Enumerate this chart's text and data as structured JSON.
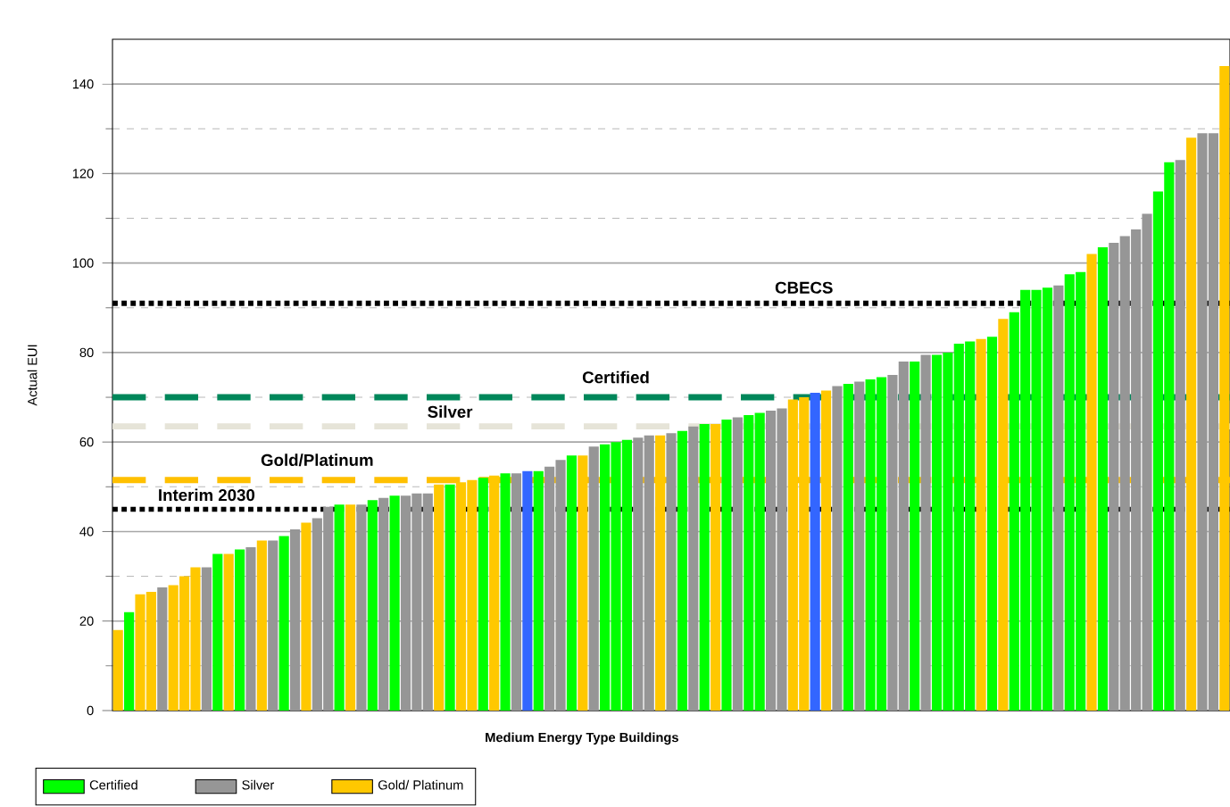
{
  "chart_data": {
    "type": "bar",
    "xlabel": "Medium Energy Type Buildings",
    "ylabel": "Actual EUI",
    "categories": [
      null,
      null,
      null,
      null,
      null,
      null,
      null,
      null,
      null,
      null,
      null,
      null,
      null,
      null,
      null,
      null,
      null,
      null,
      null,
      null,
      null,
      null,
      null,
      null,
      null,
      null,
      null,
      null,
      null,
      null,
      null,
      null,
      null,
      null,
      null,
      null,
      null,
      null,
      null,
      null,
      null,
      null,
      null,
      null,
      null,
      null,
      null,
      null,
      null,
      null,
      null,
      null,
      null,
      null,
      null,
      null,
      null,
      null,
      null,
      null,
      null,
      null,
      null,
      null,
      null,
      null,
      null,
      null,
      null,
      null,
      null,
      null,
      null,
      null,
      null,
      null,
      null,
      null,
      null,
      null,
      null,
      null,
      null,
      null,
      null,
      null,
      null,
      null,
      null,
      null,
      null,
      null,
      null,
      null,
      null,
      null,
      null,
      null,
      null,
      null,
      null
    ],
    "series": [
      {
        "name": "Certified",
        "color": "#00ff00",
        "values": [
          null,
          22,
          null,
          null,
          null,
          null,
          null,
          null,
          null,
          35,
          null,
          36,
          null,
          null,
          null,
          39,
          null,
          null,
          null,
          null,
          46,
          null,
          null,
          47,
          null,
          48,
          null,
          null,
          null,
          null,
          50.5,
          null,
          null,
          52,
          null,
          53,
          null,
          null,
          53.5,
          null,
          null,
          57,
          null,
          null,
          59.5,
          60,
          60.5,
          null,
          null,
          null,
          null,
          62.5,
          null,
          64,
          null,
          65,
          null,
          66,
          66.5,
          null,
          null,
          null,
          null,
          null,
          null,
          null,
          73,
          null,
          74,
          74.5,
          null,
          null,
          78,
          null,
          79.5,
          80,
          82,
          82.5,
          null,
          83.5,
          null,
          89,
          94,
          94,
          94.5,
          null,
          97.5,
          98,
          null,
          103.5,
          null,
          null,
          null,
          null,
          116,
          122.5,
          null,
          null,
          null,
          null,
          null
        ]
      },
      {
        "name": "Silver",
        "color": "#969696",
        "values": [
          null,
          null,
          null,
          null,
          27.5,
          null,
          null,
          null,
          32,
          null,
          null,
          null,
          36.5,
          null,
          38,
          null,
          40.5,
          null,
          43,
          45.5,
          null,
          null,
          46,
          null,
          47.5,
          null,
          48,
          48.5,
          48.5,
          null,
          null,
          null,
          null,
          null,
          null,
          null,
          53,
          null,
          null,
          54.5,
          56,
          null,
          null,
          59,
          null,
          null,
          null,
          61,
          61.5,
          null,
          62,
          null,
          63.5,
          null,
          null,
          null,
          65.5,
          null,
          null,
          67,
          67.5,
          null,
          null,
          null,
          null,
          72.5,
          null,
          73.5,
          null,
          null,
          75,
          78,
          null,
          79.5,
          null,
          null,
          null,
          null,
          null,
          null,
          null,
          null,
          null,
          null,
          null,
          95,
          null,
          null,
          null,
          null,
          104.5,
          106,
          107.5,
          111,
          null,
          null,
          123,
          null,
          129,
          129,
          null
        ]
      },
      {
        "name": "Gold/ Platinum",
        "color": "#ffc800",
        "values": [
          18,
          null,
          26,
          26.5,
          null,
          28,
          30,
          32,
          null,
          null,
          35,
          null,
          null,
          38,
          null,
          null,
          null,
          42,
          null,
          null,
          null,
          46,
          null,
          null,
          null,
          null,
          null,
          null,
          null,
          50.5,
          null,
          51,
          51.5,
          null,
          52.5,
          null,
          null,
          null,
          null,
          null,
          null,
          null,
          57,
          null,
          null,
          null,
          null,
          null,
          null,
          61.5,
          null,
          null,
          null,
          null,
          64,
          null,
          null,
          null,
          null,
          null,
          null,
          69.5,
          70,
          null,
          71.5,
          null,
          null,
          null,
          null,
          null,
          null,
          null,
          null,
          null,
          null,
          null,
          null,
          null,
          83,
          null,
          87.5,
          null,
          null,
          null,
          null,
          null,
          null,
          null,
          102,
          null,
          null,
          null,
          null,
          null,
          null,
          null,
          null,
          128,
          null,
          null,
          144
        ]
      },
      {
        "color": "#3366ff",
        "values": [
          null,
          null,
          null,
          null,
          null,
          null,
          null,
          null,
          null,
          null,
          null,
          null,
          null,
          null,
          null,
          null,
          null,
          null,
          null,
          null,
          null,
          null,
          null,
          null,
          null,
          null,
          null,
          null,
          null,
          null,
          null,
          null,
          null,
          null,
          null,
          null,
          null,
          53.5,
          null,
          null,
          null,
          null,
          null,
          null,
          null,
          null,
          null,
          null,
          null,
          null,
          null,
          null,
          null,
          null,
          null,
          null,
          null,
          null,
          null,
          null,
          null,
          null,
          null,
          71,
          null,
          null,
          null,
          null,
          null,
          null,
          null,
          null,
          null,
          null,
          null,
          null,
          null,
          null,
          null,
          null,
          null,
          null,
          null,
          null,
          null,
          null,
          null,
          null,
          null,
          null,
          null,
          null,
          null,
          null,
          null,
          null,
          null,
          null,
          null,
          null,
          null
        ]
      }
    ],
    "ylim": [
      0,
      150
    ],
    "yticks": [
      0,
      20,
      40,
      60,
      80,
      100,
      120,
      140
    ],
    "grid": "y",
    "legend": "bottom",
    "ref_lines": [
      {
        "axis": "y",
        "value": 91,
        "label": "CBECS",
        "color": "#000000",
        "line_style": "dotted"
      },
      {
        "axis": "y",
        "value": 70,
        "label": "Certified",
        "color": "#00875a",
        "line_style": "dashed"
      },
      {
        "axis": "y",
        "value": 63.5,
        "label": "Silver",
        "color": "#e6e4d8",
        "line_style": "dashed"
      },
      {
        "axis": "y",
        "value": 51.5,
        "label": "Gold/Platinum",
        "color": "#ffc000",
        "line_style": "dashed"
      },
      {
        "axis": "y",
        "value": 45,
        "label": "Interim 2030",
        "color": "#000000",
        "line_style": "dotted"
      }
    ]
  }
}
